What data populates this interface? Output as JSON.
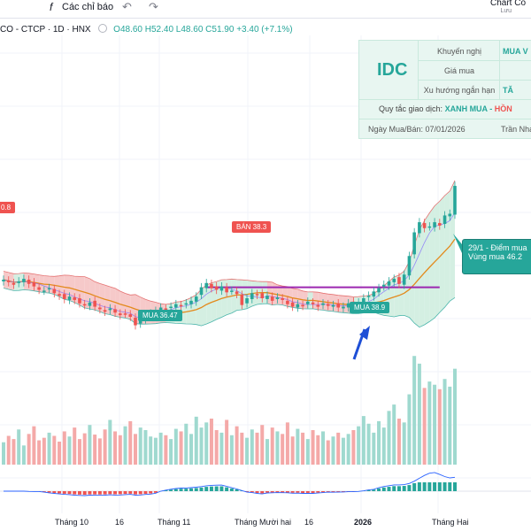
{
  "toolbar": {
    "indicators_label": "Các chỉ báo",
    "fx_label": "f",
    "app_title": "Chart Co",
    "app_subtitle": "Lưu"
  },
  "legend": {
    "symbol": "CO - CTCP · 1D · HNX",
    "open": "O48.60",
    "high": "H52.40",
    "low": "L48.60",
    "close": "C51.90",
    "change": "+3.40 (+7.1%)"
  },
  "info_table": {
    "ticker": "IDC",
    "rows": [
      {
        "label": "Khuyến nghị",
        "value": "MUA V"
      },
      {
        "label": "Giá mua",
        "value": ""
      },
      {
        "label": "Xu hướng ngắn hạn",
        "value": "TĂ"
      }
    ],
    "rule_label": "Quy tắc giao dịch:",
    "rule_buy": "XANH MUA",
    "rule_sep": " - ",
    "rule_sell": "HỒN",
    "date_label": "Ngày Mua/Bán: 07/01/2026",
    "author": "Trần Nha"
  },
  "annotations": {
    "left_price_tag": "0.8",
    "sell_tag": "BÁN 38.3",
    "buy_tag_1": "MUA 36.47",
    "buy_tag_2": "MUA 38.9",
    "callout_line1": "29/1 - Điểm mua",
    "callout_line2": "Vùng mua 46.2"
  },
  "colors": {
    "up": "#26a69a",
    "down": "#ef5350",
    "band_up": "#d4efe2",
    "band_down": "#f6c9c9",
    "resistance": "#9c27b0",
    "ma": "#e38a1c",
    "ma2": "#2962ff",
    "arrow": "#1e4fd6"
  },
  "chart_data": {
    "type": "candlestick",
    "x_labels": [
      "Tháng 10",
      "16",
      "Tháng 11",
      "Tháng Mười hai",
      "16",
      "2026",
      "Tháng Hai"
    ],
    "bold_x_labels": [
      "2026"
    ],
    "price_range": [
      32,
      54
    ],
    "close": [
      40.8,
      40.5,
      40.2,
      40.6,
      40.9,
      40.3,
      40.0,
      39.6,
      39.5,
      39.8,
      39.2,
      38.9,
      38.5,
      38.8,
      38.4,
      38.0,
      37.8,
      38.1,
      37.6,
      37.3,
      37.0,
      37.4,
      36.9,
      36.6,
      36.8,
      36.4,
      35.4,
      36.2,
      36.5,
      36.8,
      37.1,
      37.5,
      37.3,
      37.6,
      37.9,
      37.7,
      38.0,
      38.3,
      38.8,
      39.9,
      40.4,
      39.8,
      39.6,
      40.0,
      39.3,
      39.5,
      39.1,
      37.8,
      38.6,
      39.2,
      39.0,
      38.6,
      38.9,
      38.3,
      38.7,
      38.4,
      37.9,
      37.6,
      37.9,
      37.7,
      38.2,
      37.9,
      37.6,
      38.0,
      37.7,
      37.8,
      37.5,
      37.6,
      38.0,
      37.4,
      38.1,
      38.6,
      38.9,
      39.4,
      39.8,
      40.2,
      40.6,
      40.9,
      40.3,
      41.4,
      43.6,
      46.4,
      47.6,
      46.9,
      47.1,
      47.6,
      47.2,
      48.4,
      48.6,
      51.9
    ],
    "volume": [
      35,
      45,
      40,
      55,
      30,
      48,
      60,
      38,
      42,
      50,
      45,
      36,
      52,
      44,
      58,
      40,
      49,
      62,
      47,
      41,
      55,
      70,
      52,
      46,
      60,
      68,
      48,
      58,
      54,
      44,
      42,
      50,
      46,
      40,
      56,
      52,
      64,
      48,
      75,
      58,
      66,
      72,
      54,
      50,
      70,
      46,
      60,
      50,
      42,
      55,
      50,
      62,
      40,
      58,
      52,
      48,
      66,
      44,
      56,
      50,
      40,
      54,
      46,
      52,
      38,
      44,
      50,
      42,
      48,
      54,
      60,
      76,
      64,
      50,
      68,
      58,
      84,
      94,
      72,
      66,
      110,
      170,
      158,
      120,
      130,
      125,
      118,
      134,
      122,
      150
    ],
    "sell_signal": 38.3,
    "buy_signals": [
      36.47,
      38.9
    ],
    "buy_zone": 46.2
  }
}
